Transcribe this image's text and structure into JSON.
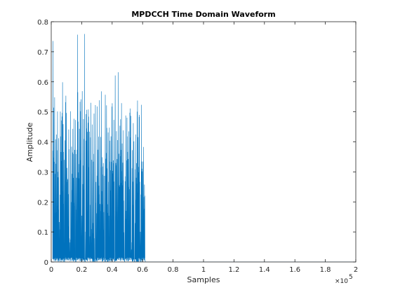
{
  "chart_data": {
    "type": "line",
    "title": "MPDCCH Time Domain Waveform",
    "xlabel": "Samples",
    "ylabel": "Amplitude",
    "x_exponent_label": "×10",
    "x_exponent_power": "5",
    "xlim": [
      0,
      200000
    ],
    "ylim": [
      0,
      0.8
    ],
    "xticks": [
      0,
      20000,
      40000,
      60000,
      80000,
      100000,
      120000,
      140000,
      160000,
      180000,
      200000
    ],
    "xtick_labels": [
      "0",
      "0.2",
      "0.4",
      "0.6",
      "0.8",
      "1",
      "1.2",
      "1.4",
      "1.6",
      "1.8",
      "2"
    ],
    "yticks": [
      0,
      0.1,
      0.2,
      0.3,
      0.4,
      0.5,
      0.6,
      0.7,
      0.8
    ],
    "ytick_labels": [
      "0",
      "0.1",
      "0.2",
      "0.3",
      "0.4",
      "0.5",
      "0.6",
      "0.7",
      "0.8"
    ],
    "grid": false,
    "series_color": "#0072BD",
    "series": [
      {
        "name": "",
        "bursts": [
          {
            "x_start": 1000,
            "x_end": 8500,
            "peak": 0.8,
            "typical": 0.6
          },
          {
            "x_start": 9000,
            "x_end": 15500,
            "peak": 0.8,
            "typical": 0.6
          },
          {
            "x_start": 16000,
            "x_end": 22000,
            "peak": 0.8,
            "typical": 0.6
          },
          {
            "x_start": 22500,
            "x_end": 28500,
            "peak": 0.8,
            "typical": 0.6
          },
          {
            "x_start": 29000,
            "x_end": 35000,
            "peak": 0.76,
            "typical": 0.58
          },
          {
            "x_start": 35500,
            "x_end": 41500,
            "peak": 0.7,
            "typical": 0.58
          },
          {
            "x_start": 42000,
            "x_end": 48000,
            "peak": 0.64,
            "typical": 0.56
          },
          {
            "x_start": 48500,
            "x_end": 54500,
            "peak": 0.63,
            "typical": 0.56
          },
          {
            "x_start": 55000,
            "x_end": 61500,
            "peak": 0.62,
            "typical": 0.57
          }
        ],
        "tail_value": 0,
        "tail_start": 62000,
        "tail_end": 200000
      }
    ]
  }
}
